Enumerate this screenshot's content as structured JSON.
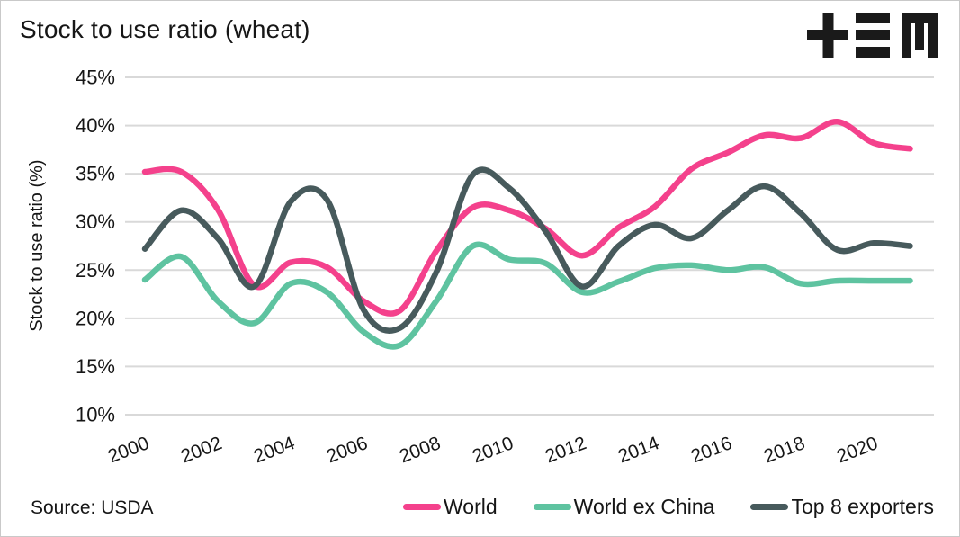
{
  "title": "Stock to use ratio (wheat)",
  "source": "Source: USDA",
  "logo": {
    "name": "tem-logo",
    "color": "#1a1a1a"
  },
  "chart_data": {
    "type": "line",
    "title": "Stock to use ratio (wheat)",
    "xlabel": "",
    "ylabel": "Stock to use ratio (%)",
    "x": [
      2000,
      2001,
      2002,
      2003,
      2004,
      2005,
      2006,
      2007,
      2008,
      2009,
      2010,
      2011,
      2012,
      2013,
      2014,
      2015,
      2016,
      2017,
      2018,
      2019,
      2020,
      2021
    ],
    "x_tick_years": [
      2000,
      2002,
      2004,
      2006,
      2008,
      2010,
      2012,
      2014,
      2016,
      2018,
      2020
    ],
    "x_tick_labels": [
      "2000",
      "2002",
      "2004",
      "2006",
      "2008",
      "2010",
      "2012",
      "2014",
      "2016",
      "2018",
      "2020"
    ],
    "y_ticks": [
      10,
      15,
      20,
      25,
      30,
      35,
      40,
      45
    ],
    "y_tick_labels": [
      "10%",
      "15%",
      "20%",
      "25%",
      "30%",
      "35%",
      "40%",
      "45%"
    ],
    "ylim": [
      10,
      45
    ],
    "xlim": [
      2000,
      2021
    ],
    "grid": "horizontal-only",
    "gridline_color": "#d9d9d9",
    "text_color": "#161616",
    "legend_position": "bottom-right",
    "series": [
      {
        "name": "World",
        "color": "#f4418c",
        "values": [
          35.2,
          35.2,
          31.3,
          23.4,
          25.8,
          25.3,
          21.8,
          20.8,
          27.0,
          31.5,
          31.2,
          29.3,
          26.5,
          29.4,
          31.6,
          35.5,
          37.2,
          39.0,
          38.7,
          40.4,
          38.2,
          37.6
        ]
      },
      {
        "name": "World ex China",
        "color": "#5ec3a0",
        "values": [
          24.0,
          26.4,
          21.8,
          19.5,
          23.6,
          22.7,
          18.6,
          17.2,
          21.8,
          27.5,
          26.1,
          25.7,
          22.7,
          23.8,
          25.2,
          25.5,
          25.0,
          25.3,
          23.6,
          23.9,
          23.9,
          23.9
        ]
      },
      {
        "name": "Top 8 exporters",
        "color": "#475a5c",
        "values": [
          27.2,
          31.2,
          28.3,
          23.3,
          32.1,
          32.3,
          20.9,
          19.0,
          24.8,
          34.9,
          33.5,
          29.0,
          23.3,
          27.5,
          29.7,
          28.3,
          31.2,
          33.7,
          30.9,
          27.1,
          27.8,
          27.5
        ]
      }
    ]
  }
}
